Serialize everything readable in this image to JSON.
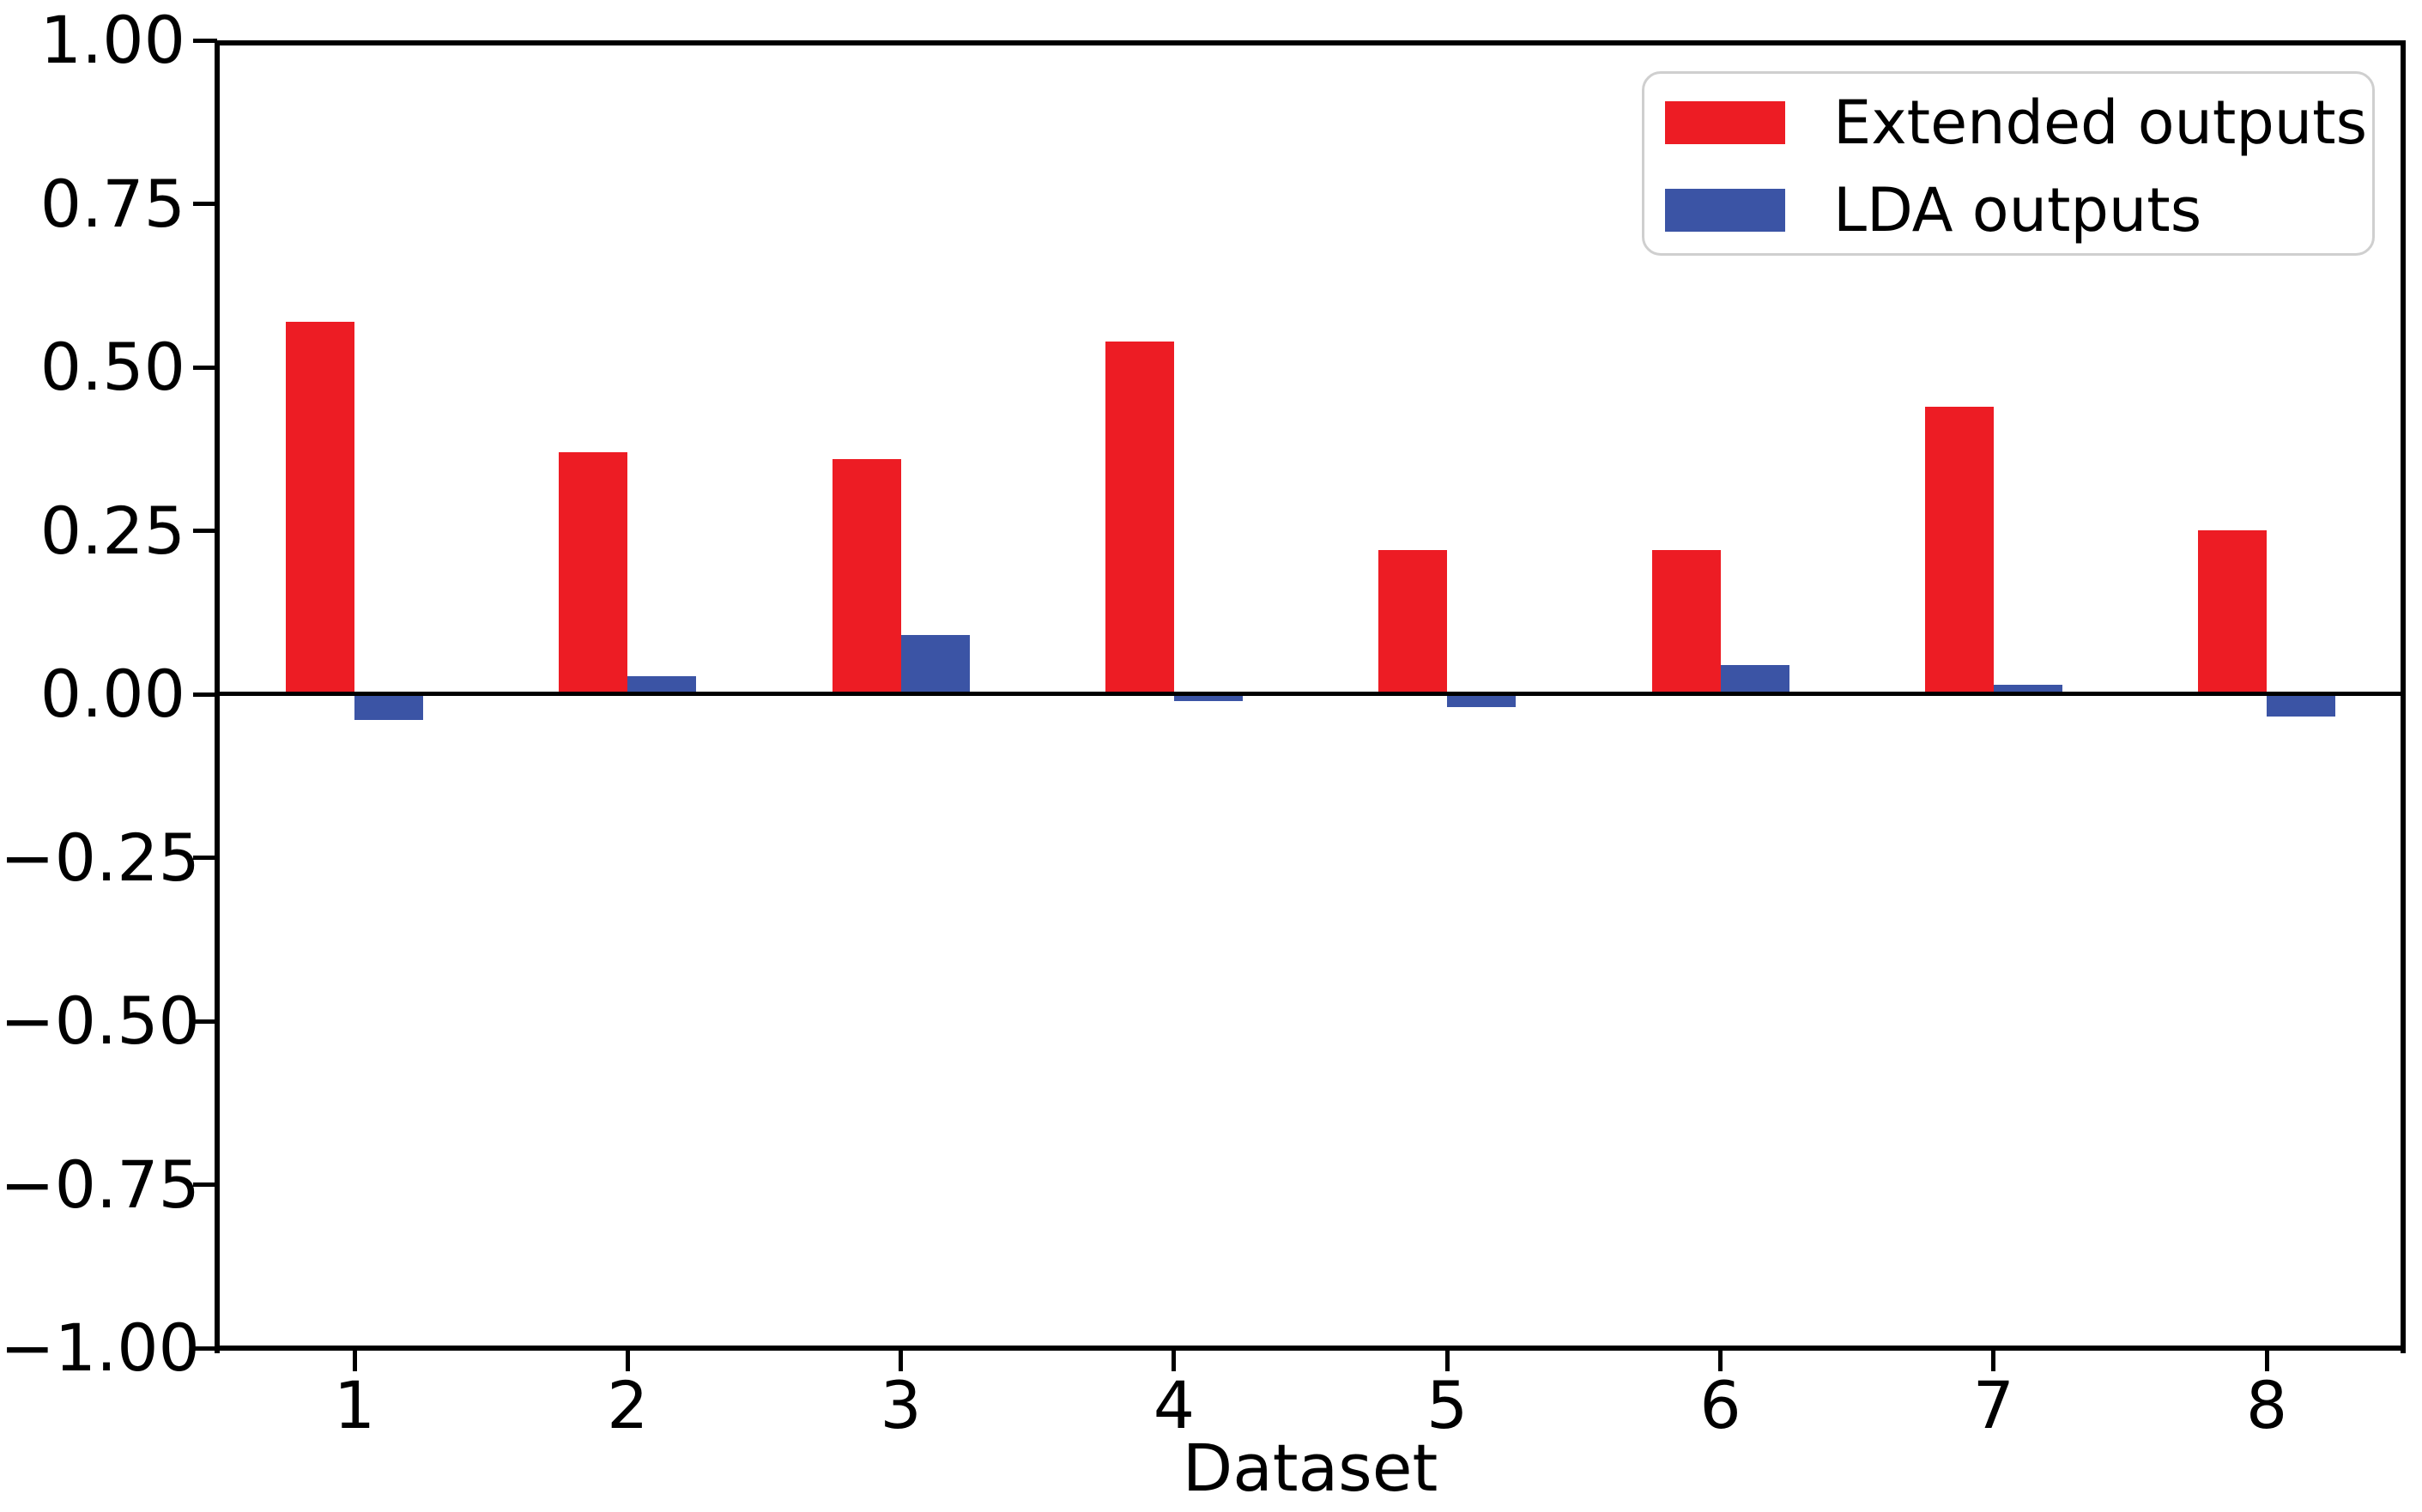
{
  "chart_data": {
    "type": "bar",
    "title": "",
    "xlabel": "Dataset",
    "ylabel": "",
    "categories": [
      "1",
      "2",
      "3",
      "4",
      "5",
      "6",
      "7",
      "8"
    ],
    "series": [
      {
        "name": "Extended outputs",
        "color": "#ed1c24",
        "values": [
          0.57,
          0.37,
          0.36,
          0.54,
          0.22,
          0.22,
          0.44,
          0.25
        ]
      },
      {
        "name": "LDA outputs",
        "color": "#3b54a5",
        "values": [
          -0.04,
          0.027,
          0.09,
          -0.01,
          -0.02,
          0.045,
          0.015,
          -0.034
        ]
      }
    ],
    "ylim": [
      -1.0,
      1.0
    ],
    "yticks": [
      1.0,
      0.75,
      0.5,
      0.25,
      0.0,
      -0.25,
      -0.5,
      -0.75,
      -1.0
    ],
    "ytick_labels": [
      "1.00",
      "0.75",
      "0.50",
      "0.25",
      "0.00",
      "−0.25",
      "−0.50",
      "−0.75",
      "−1.00"
    ],
    "grid": false,
    "legend_position": "upper right",
    "axis_color": "#000000",
    "background_color": "#ffffff"
  }
}
